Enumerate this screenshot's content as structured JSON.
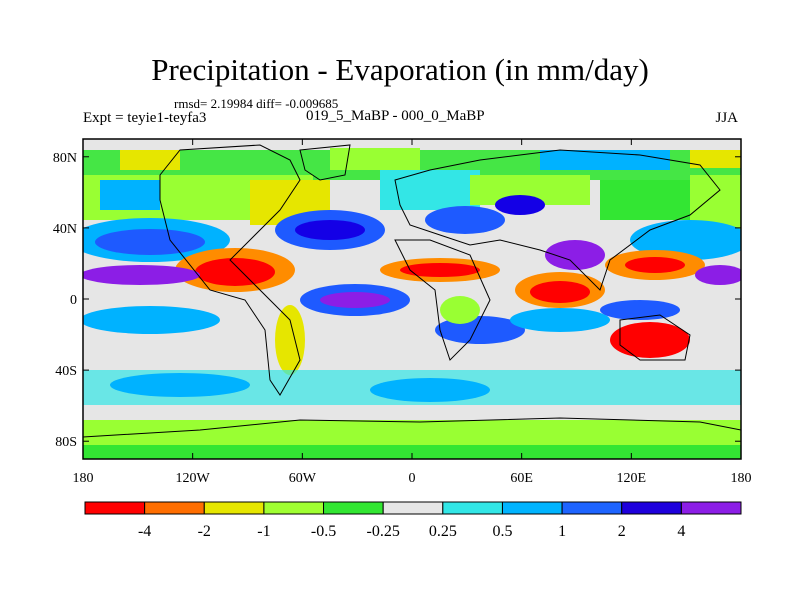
{
  "title": "Precipitation - Evaporation (in mm/day)",
  "stats": "rmsd= 2.19984 diff= -0.009685",
  "experiment": "Expt = teyie1-teyfa3",
  "period": "019_5_MaBP - 000_0_MaBP",
  "season": "JJA",
  "map": {
    "lat_labels": [
      "80N",
      "40N",
      "0",
      "40S",
      "80S"
    ],
    "lat_values": [
      80,
      40,
      0,
      -40,
      -80
    ],
    "lon_labels": [
      "180",
      "120W",
      "60W",
      "0",
      "60E",
      "120E",
      "180"
    ],
    "lon_values": [
      -180,
      -120,
      -60,
      0,
      60,
      120,
      180
    ],
    "lat_range": [
      -90,
      90
    ],
    "lon_range": [
      -180,
      180
    ],
    "field_colors": {
      "ocean_neutral": "#e6e6e6",
      "strong_dry": "#ff0000",
      "dry": "#ff8c00",
      "mild_dry": "#e6e600",
      "weak_dry": "#99ff33",
      "weak_dry2": "#33e633",
      "weak_wet": "#33e6e6",
      "mild_wet": "#00b2ff",
      "wet": "#1e5aff",
      "strong_wet": "#1400e6",
      "extreme_wet": "#8c1ee6"
    }
  },
  "colorbar": {
    "colors": [
      "#ff0000",
      "#ff6e00",
      "#e6e600",
      "#a0ff32",
      "#32e632",
      "#e6e6e6",
      "#32e6e6",
      "#00b4ff",
      "#1e64ff",
      "#1e00dc",
      "#8c1ee6"
    ],
    "labels": [
      "-4",
      "-2",
      "-1",
      "-0.5",
      "-0.25",
      "0.25",
      "0.5",
      "1",
      "2",
      "4"
    ]
  }
}
